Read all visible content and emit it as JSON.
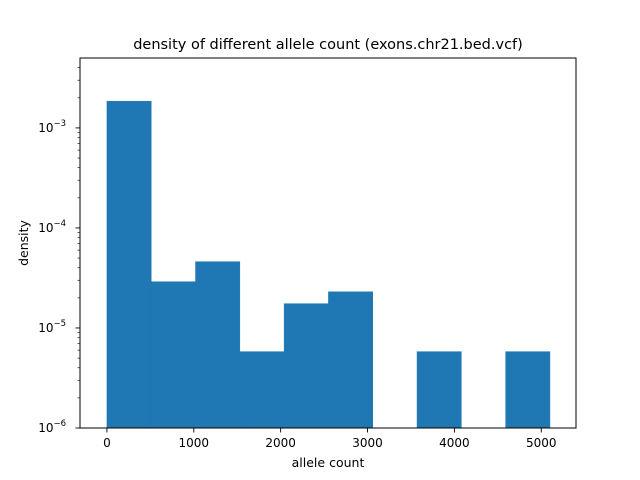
{
  "chart_data": {
    "type": "bar",
    "title": "density of different allele count (exons.chr21.bed.vcf)",
    "xlabel": "allele count",
    "ylabel": "density",
    "yscale": "log",
    "xlim": [
      -310,
      5400
    ],
    "ylim": [
      1e-06,
      0.005
    ],
    "grid": false,
    "color": "#1f77b4",
    "bins": [
      {
        "x0": 0,
        "x1": 510,
        "value": 0.00185
      },
      {
        "x0": 510,
        "x1": 1020,
        "value": 2.9e-05
      },
      {
        "x0": 1020,
        "x1": 1530,
        "value": 4.6e-05
      },
      {
        "x0": 1530,
        "x1": 2040,
        "value": 5.8e-06
      },
      {
        "x0": 2040,
        "x1": 2550,
        "value": 1.75e-05
      },
      {
        "x0": 2550,
        "x1": 3060,
        "value": 2.3e-05
      },
      {
        "x0": 3060,
        "x1": 3570,
        "value": 0
      },
      {
        "x0": 3570,
        "x1": 4080,
        "value": 5.8e-06
      },
      {
        "x0": 4080,
        "x1": 4590,
        "value": 0
      },
      {
        "x0": 4590,
        "x1": 5100,
        "value": 5.8e-06
      }
    ],
    "xticks": [
      {
        "value": 0,
        "label": "0"
      },
      {
        "value": 1000,
        "label": "1000"
      },
      {
        "value": 2000,
        "label": "2000"
      },
      {
        "value": 3000,
        "label": "3000"
      },
      {
        "value": 4000,
        "label": "4000"
      },
      {
        "value": 5000,
        "label": "5000"
      }
    ],
    "yticks": [
      {
        "value": 1e-06,
        "base": "10",
        "exp": "−6"
      },
      {
        "value": 1e-05,
        "base": "10",
        "exp": "−5"
      },
      {
        "value": 0.0001,
        "base": "10",
        "exp": "−4"
      },
      {
        "value": 0.001,
        "base": "10",
        "exp": "−3"
      }
    ]
  }
}
